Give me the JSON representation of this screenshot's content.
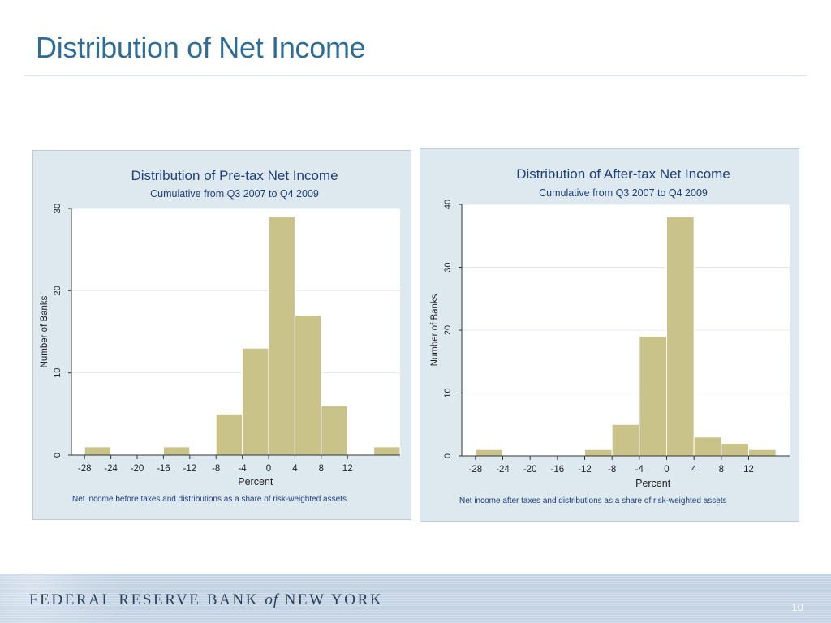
{
  "slide": {
    "title": "Distribution of Net Income",
    "page_number": "10"
  },
  "footer": {
    "brand_pre": "FEDERAL RESERVE BANK",
    "brand_of": "of",
    "brand_post": "NEW YORK"
  },
  "colors": {
    "bar_fill": "#c9c389",
    "bar_stroke": "#ffffff",
    "panel_bg": "#dde8ef",
    "title_blue": "#2e6c99",
    "chart_title": "#1f3f7a"
  },
  "chart_data": [
    {
      "type": "bar",
      "title": "Distribution of Pre-tax Net Income",
      "subtitle": "Cumulative from Q3 2007 to Q4 2009",
      "xlabel": "Percent",
      "ylabel": "Number of Banks",
      "note": "Net income before taxes and distributions as a share of risk-weighted assets.",
      "xlim": [
        -30,
        20
      ],
      "ylim": [
        0,
        30
      ],
      "yticks": [
        0,
        10,
        20,
        30
      ],
      "xticks": [
        -28,
        -24,
        -20,
        -16,
        -12,
        -8,
        -4,
        0,
        4,
        8,
        12
      ],
      "bin_width": 4,
      "bins": [
        {
          "start": -28,
          "value": 1
        },
        {
          "start": -24,
          "value": 0
        },
        {
          "start": -20,
          "value": 0
        },
        {
          "start": -16,
          "value": 1
        },
        {
          "start": -12,
          "value": 0
        },
        {
          "start": -8,
          "value": 5
        },
        {
          "start": -4,
          "value": 13
        },
        {
          "start": 0,
          "value": 29
        },
        {
          "start": 4,
          "value": 17
        },
        {
          "start": 8,
          "value": 6
        },
        {
          "start": 12,
          "value": 0
        },
        {
          "start": 16,
          "value": 1
        }
      ],
      "grid": true
    },
    {
      "type": "bar",
      "title": "Distribution of After-tax Net Income",
      "subtitle": "Cumulative from Q3 2007 to Q4 2009",
      "xlabel": "Percent",
      "ylabel": "Number of Banks",
      "note": "Net income after taxes and distributions as a share of risk-weighted assets",
      "xlim": [
        -30,
        18
      ],
      "ylim": [
        0,
        40
      ],
      "yticks": [
        0,
        10,
        20,
        30,
        40
      ],
      "xticks": [
        -28,
        -24,
        -20,
        -16,
        -12,
        -8,
        -4,
        0,
        4,
        8,
        12
      ],
      "bin_width": 4,
      "bins": [
        {
          "start": -28,
          "value": 1
        },
        {
          "start": -24,
          "value": 0
        },
        {
          "start": -20,
          "value": 0
        },
        {
          "start": -16,
          "value": 0
        },
        {
          "start": -12,
          "value": 1
        },
        {
          "start": -8,
          "value": 5
        },
        {
          "start": -4,
          "value": 19
        },
        {
          "start": 0,
          "value": 38
        },
        {
          "start": 4,
          "value": 3
        },
        {
          "start": 8,
          "value": 2
        },
        {
          "start": 12,
          "value": 1
        }
      ],
      "grid": true
    }
  ]
}
